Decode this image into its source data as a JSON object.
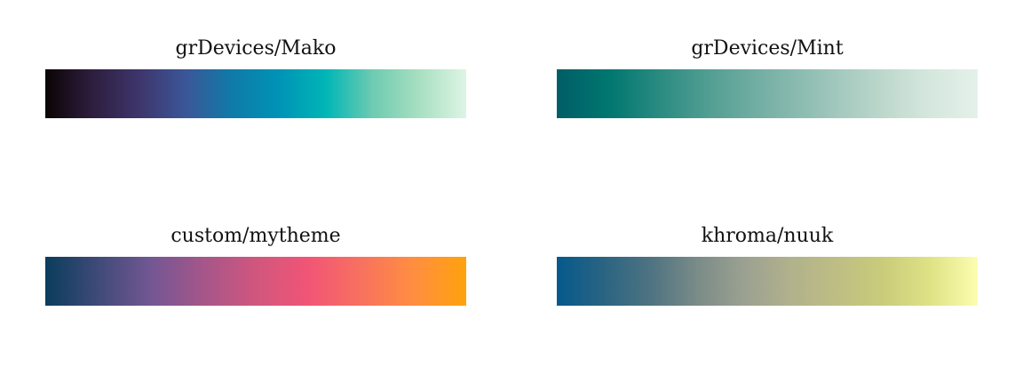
{
  "palettes": [
    {
      "title": "grDevices/Mako",
      "colors": [
        "#0B0405",
        "#2D1E3E",
        "#3E356B",
        "#3B5698",
        "#0F7BA8",
        "#0093B7",
        "#00B6B6",
        "#6ECBB1",
        "#A8DFC1",
        "#DEF5E5"
      ]
    },
    {
      "title": "grDevices/Mint",
      "colors": [
        "#005D67",
        "#00776F",
        "#2C8C82",
        "#57A094",
        "#78B1A6",
        "#98C2B7",
        "#B7D4C9",
        "#D3E6DC",
        "#E4F1EA"
      ]
    },
    {
      "title": "custom/mytheme",
      "colors": [
        "#0A3D5C",
        "#3F4A78",
        "#725793",
        "#A5568A",
        "#D0567E",
        "#F15575",
        "#F8715F",
        "#FF8E40",
        "#FFA20D"
      ]
    },
    {
      "title": "khroma/nuuk",
      "colors": [
        "#05598C",
        "#2A6482",
        "#4E7381",
        "#7A8B88",
        "#9BA191",
        "#B1B18C",
        "#BEBE84",
        "#CACC7A",
        "#E0E286",
        "#FDFDB0"
      ]
    }
  ]
}
